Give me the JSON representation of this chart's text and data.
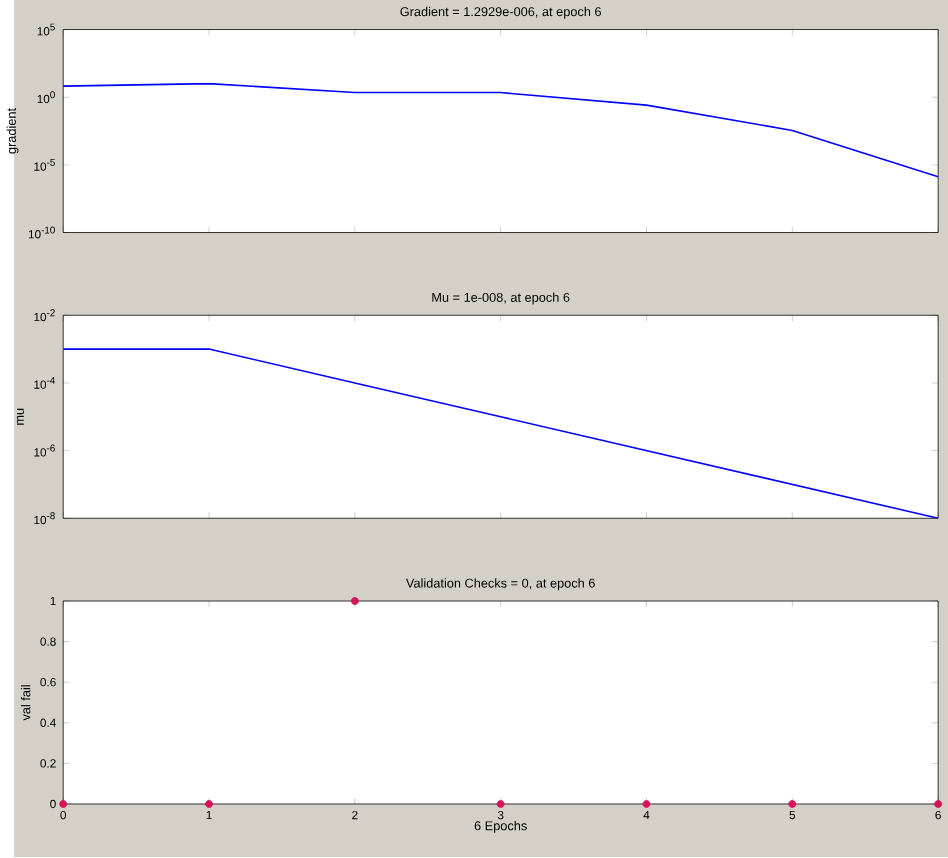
{
  "chart_data": [
    {
      "type": "line",
      "title": "Gradient = 1.2929e-006, at epoch 6",
      "ylabel": "gradient",
      "log": "y",
      "tick_labels": "y",
      "x": [
        0,
        1,
        2,
        3,
        4,
        5,
        6
      ],
      "series": [
        {
          "color": "#0000ff",
          "values": [
            6.6,
            10,
            2.2,
            2.2,
            0.26,
            0.0035,
            1.2929e-06
          ]
        }
      ],
      "xlim": [
        0,
        6
      ],
      "xticks": [
        {
          "value": 0,
          "label": null
        },
        {
          "value": 1,
          "label": null
        },
        {
          "value": 2,
          "label": null
        },
        {
          "value": 3,
          "label": null
        },
        {
          "value": 4,
          "label": null
        },
        {
          "value": 5,
          "label": null
        },
        {
          "value": 6,
          "label": null
        }
      ],
      "ylim": [
        1e-10,
        100000
      ],
      "yticks": [
        {
          "value": 1e-10,
          "label": "10$^{-10}$"
        },
        {
          "value": 1e-05,
          "label": "10$^{-5}$"
        },
        {
          "value": 1,
          "label": "10$^{0}$"
        },
        {
          "value": 100000,
          "label": "10$^{5}$"
        }
      ]
    },
    {
      "type": "line",
      "title": "Mu = 1e-008, at epoch 6",
      "ylabel": "mu",
      "log": "y",
      "tick_labels": "y",
      "x": [
        0,
        1,
        2,
        3,
        4,
        5,
        6
      ],
      "series": [
        {
          "color": "#0000ff",
          "values": [
            0.001,
            0.001,
            0.0001,
            1e-05,
            1e-06,
            1e-07,
            1e-08
          ]
        }
      ],
      "xlim": [
        0,
        6
      ],
      "xticks": [
        {
          "value": 0,
          "label": null
        },
        {
          "value": 1,
          "label": null
        },
        {
          "value": 2,
          "label": null
        },
        {
          "value": 3,
          "label": null
        },
        {
          "value": 4,
          "label": null
        },
        {
          "value": 5,
          "label": null
        },
        {
          "value": 6,
          "label": null
        }
      ],
      "ylim": [
        1e-08,
        0.01
      ],
      "yticks": [
        {
          "value": 1e-08,
          "label": "10$^{-8}$"
        },
        {
          "value": 1e-06,
          "label": "10$^{-6}$"
        },
        {
          "value": 0.0001,
          "label": "10$^{-4}$"
        },
        {
          "value": 0.01,
          "label": "10$^{-2}$"
        }
      ]
    },
    {
      "type": "scatter",
      "title": "Validation Checks = 0, at epoch 6",
      "ylabel": "val fail",
      "xlabel": "6 Epochs",
      "marker": "circle",
      "x": [
        0,
        1,
        2,
        3,
        4,
        5,
        6
      ],
      "series": [
        {
          "color": "#d6145a",
          "values": [
            0,
            0,
            1,
            0,
            0,
            0,
            0
          ]
        }
      ],
      "xlim": [
        0,
        6
      ],
      "xticks": [
        0,
        1,
        2,
        3,
        4,
        5,
        6
      ],
      "ylim": [
        0,
        1
      ],
      "yticks": [
        0,
        0.2,
        0.4,
        0.6,
        0.8,
        1
      ]
    }
  ]
}
